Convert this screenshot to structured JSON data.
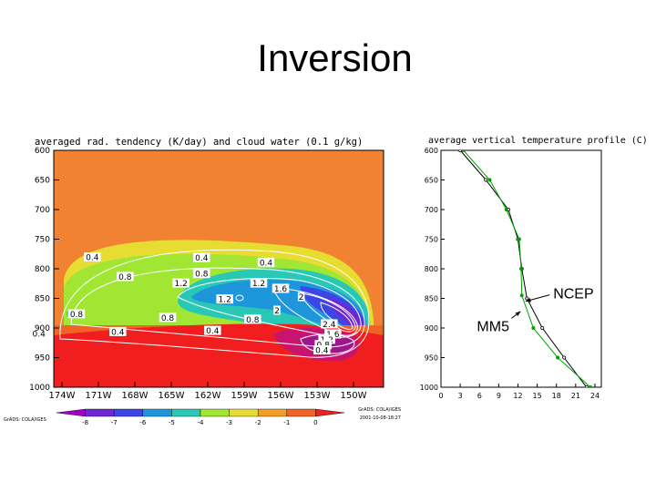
{
  "slide": {
    "title": "Inversion"
  },
  "chart_data": [
    {
      "type": "heatmap",
      "title": "averaged rad. tendency (K/day) and cloud water (0.1 g/kg)",
      "x_ticks": [
        "174W",
        "171W",
        "168W",
        "165W",
        "162W",
        "159W",
        "156W",
        "153W",
        "150W"
      ],
      "y_ticks": [
        "600",
        "650",
        "700",
        "750",
        "800",
        "850",
        "900",
        "950",
        "1000"
      ],
      "ylim": [
        1000,
        600
      ],
      "colorbar": {
        "labels": [
          "-8",
          "-7",
          "-6",
          "-5",
          "-4",
          "-3",
          "-2",
          "-1",
          "0"
        ],
        "colors": [
          "#a000c8",
          "#6e28d2",
          "#3c46e6",
          "#1e96dc",
          "#28c8b4",
          "#a0e632",
          "#e6dc32",
          "#f0a028",
          "#f06428",
          "#f01e1e"
        ]
      },
      "contour_labels": [
        {
          "text": "0.4",
          "lon": -171.5,
          "p": 780
        },
        {
          "text": "0.4",
          "lon": -162.5,
          "p": 781
        },
        {
          "text": "0.4",
          "lon": -157.2,
          "p": 789
        },
        {
          "text": "0.8",
          "lon": -168.8,
          "p": 813
        },
        {
          "text": "0.8",
          "lon": -162.5,
          "p": 808
        },
        {
          "text": "1.2",
          "lon": -164.2,
          "p": 824
        },
        {
          "text": "1.2",
          "lon": -157.8,
          "p": 824
        },
        {
          "text": "1.6",
          "lon": -156,
          "p": 833
        },
        {
          "text": "1.2",
          "lon": -160.6,
          "p": 851
        },
        {
          "text": "2",
          "lon": -154.3,
          "p": 847
        },
        {
          "text": "2",
          "lon": -156.3,
          "p": 870
        },
        {
          "text": "2.4",
          "lon": -152,
          "p": 893
        },
        {
          "text": "0.8",
          "lon": -172.8,
          "p": 876
        },
        {
          "text": "0.8",
          "lon": -165.3,
          "p": 882
        },
        {
          "text": "0.8",
          "lon": -158.3,
          "p": 885
        },
        {
          "text": "1.6",
          "lon": -151.7,
          "p": 910
        },
        {
          "text": "1.2",
          "lon": -152.2,
          "p": 919
        },
        {
          "text": "0.8",
          "lon": -152.5,
          "p": 928
        },
        {
          "text": "0.4",
          "lon": -152.6,
          "p": 937
        },
        {
          "text": "0.4",
          "lon": -175.9,
          "p": 909
        },
        {
          "text": "0.4",
          "lon": -169.4,
          "p": 906
        },
        {
          "text": "0.4",
          "lon": -161.6,
          "p": 904
        }
      ],
      "left_footer": "GrADS: COLA/IGES",
      "right_footer": [
        "GrADS: COLA/IGES",
        "2001-10-08-18:27"
      ]
    },
    {
      "type": "line",
      "title": "average vertical temperature profile (C)",
      "x_ticks": [
        "0",
        "3",
        "6",
        "9",
        "12",
        "15",
        "18",
        "21",
        "24"
      ],
      "y_ticks": [
        "600",
        "650",
        "700",
        "750",
        "800",
        "850",
        "900",
        "950",
        "1000"
      ],
      "xlim": [
        0,
        25
      ],
      "ylim": [
        1000,
        600
      ],
      "series": [
        {
          "name": "NCEP",
          "color": "#000000",
          "points": [
            [
              3,
              600
            ],
            [
              7,
              650
            ],
            [
              10.5,
              700
            ],
            [
              12,
              750
            ],
            [
              12.6,
              800
            ],
            [
              13.4,
              850
            ],
            [
              15.8,
              900
            ],
            [
              19.2,
              950
            ],
            [
              22.7,
              1000
            ]
          ]
        },
        {
          "name": "MM5",
          "color": "#00a000",
          "points": [
            [
              3.5,
              600
            ],
            [
              7.6,
              650
            ],
            [
              10.2,
              700
            ],
            [
              12.2,
              750
            ],
            [
              12.5,
              800
            ],
            [
              12.6,
              845
            ],
            [
              14.4,
              900
            ],
            [
              18.2,
              950
            ],
            [
              23.3,
              1000
            ]
          ]
        }
      ],
      "annotations": [
        {
          "text": "NCEP",
          "x": 17.5,
          "p": 841
        },
        {
          "text": "MM5",
          "x": 5.6,
          "p": 896
        }
      ]
    }
  ]
}
